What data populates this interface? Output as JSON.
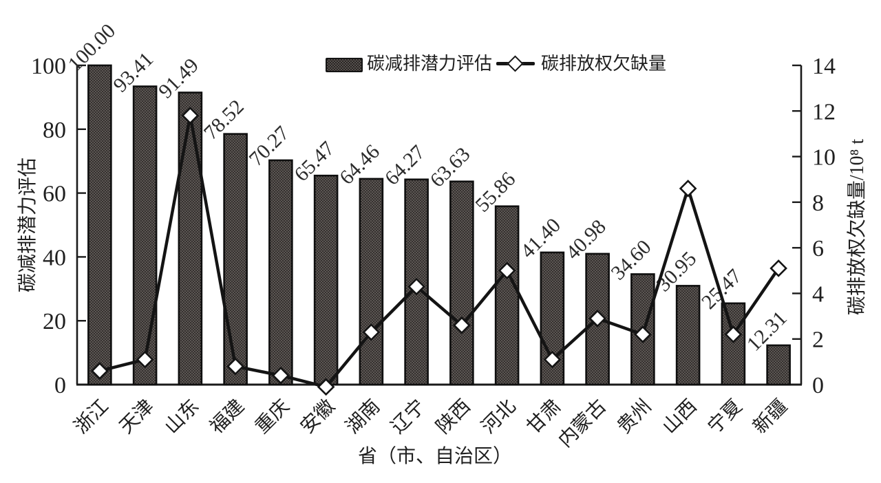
{
  "figure": {
    "legend": {
      "bar_label": "碳减排潜力评估",
      "line_label": "碳排放权欠缺量"
    },
    "left_axis_title": "碳减排潜力评估",
    "right_axis_title": "碳排放权欠缺量/10⁸ t",
    "x_axis_title": "省（市、自治区）"
  },
  "chart_data": {
    "type": "combo-bar-line",
    "categories": [
      "浙江",
      "天津",
      "山东",
      "福建",
      "重庆",
      "安徽",
      "湖南",
      "辽宁",
      "陕西",
      "河北",
      "甘肃",
      "内蒙古",
      "贵州",
      "山西",
      "宁夏",
      "新疆"
    ],
    "series": [
      {
        "name": "碳减排潜力评估",
        "type": "bar",
        "axis": "left",
        "values": [
          100.0,
          93.41,
          91.49,
          78.52,
          70.27,
          65.47,
          64.46,
          64.27,
          63.63,
          55.86,
          41.4,
          40.98,
          34.6,
          30.95,
          25.47,
          12.31
        ],
        "labels": [
          "100.00",
          "93.41",
          "91.49",
          "78.52",
          "70.27",
          "65.47",
          "64.46",
          "64.27",
          "63.63",
          "55.86",
          "41.40",
          "40.98",
          "34.60",
          "30.95",
          "25.47",
          "12.31"
        ]
      },
      {
        "name": "碳排放权欠缺量",
        "type": "line",
        "axis": "right",
        "values": [
          0.6,
          1.1,
          11.8,
          0.8,
          0.4,
          -0.1,
          2.3,
          4.3,
          2.6,
          5.0,
          1.1,
          2.9,
          2.2,
          8.6,
          2.2,
          5.1
        ]
      }
    ],
    "left_axis": {
      "label": "碳减排潜力评估",
      "ticks": [
        0,
        20,
        40,
        60,
        80,
        100
      ],
      "range": [
        0,
        100
      ]
    },
    "right_axis": {
      "label": "碳排放权欠缺量/10⁸ t",
      "ticks": [
        0,
        2,
        4,
        6,
        8,
        10,
        12,
        14
      ],
      "range": [
        0,
        14
      ]
    },
    "xlabel": "省（市、自治区）",
    "legend_entries": [
      "碳减排潜力评估",
      "碳排放权欠缺量"
    ],
    "legend_position": "top-center",
    "grid": false,
    "colors": {
      "bar_fill": "#575250",
      "bar_dot": "#272321",
      "bar_border": "#0f0f0f",
      "line": "#141414",
      "marker_fill": "#ffffff",
      "text": "#1f1f1f",
      "background": "#ffffff"
    }
  }
}
